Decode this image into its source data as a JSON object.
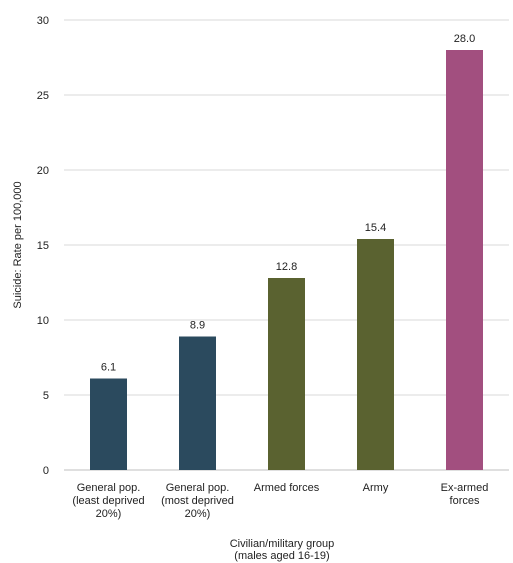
{
  "chart_data": {
    "type": "bar",
    "categories": [
      [
        "General pop.",
        "(least deprived",
        "20%)"
      ],
      [
        "General pop.",
        "(most deprived",
        "20%)"
      ],
      [
        "Armed forces"
      ],
      [
        "Army"
      ],
      [
        "Ex-armed",
        "forces"
      ]
    ],
    "values": [
      6.1,
      8.9,
      12.8,
      15.4,
      28.0
    ],
    "value_labels": [
      "6.1",
      "8.9",
      "12.8",
      "15.4",
      "28.0"
    ],
    "bar_colors": [
      "#2b4a5e",
      "#2b4a5e",
      "#5a6230",
      "#5a6230",
      "#a24f7f"
    ],
    "ylabel": "Suicide: Rate per 100,000",
    "xlabel": [
      "Civilian/military group",
      "(males aged 16-19)"
    ],
    "ylim": [
      0,
      30
    ],
    "yticks": [
      "0",
      "5",
      "10",
      "15",
      "20",
      "25",
      "30"
    ],
    "grid": true
  }
}
